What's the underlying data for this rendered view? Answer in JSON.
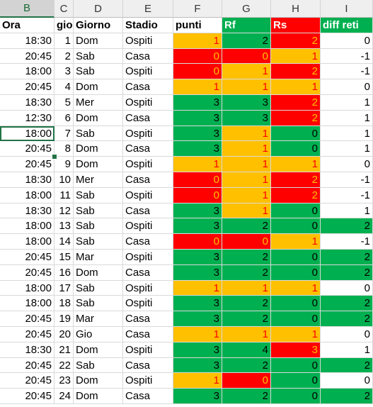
{
  "colors": {
    "red": "#ff0000",
    "green": "#00b050",
    "orange": "#ffc000",
    "white": "#ffffff"
  },
  "column_headers": [
    "B",
    "C",
    "D",
    "E",
    "F",
    "G",
    "H",
    "I"
  ],
  "selected_column": "B",
  "header_row": [
    "Ora",
    "gio",
    "Giorno",
    "Stadio",
    "punti",
    "Rf",
    "Rs",
    "diff reti"
  ],
  "header_fills": [
    "white",
    "white",
    "white",
    "white",
    "white",
    "green",
    "red",
    "green"
  ],
  "header_text_colors": [
    "#000000",
    "#000000",
    "#000000",
    "#000000",
    "#000000",
    "#ffffff",
    "#ffffff",
    "#ffffff"
  ],
  "active_cell": {
    "row": 7,
    "col": 0
  },
  "rows": [
    {
      "ora": "18:30",
      "gio": "1",
      "giorno": "Dom",
      "stadio": "Ospiti",
      "punti": "1",
      "punti_fill": "orange",
      "rf": "2",
      "rf_fill": "green",
      "rs": "2",
      "rs_fill": "red",
      "diff": "0",
      "diff_fill": "white"
    },
    {
      "ora": "20:45",
      "gio": "2",
      "giorno": "Sab",
      "stadio": "Casa",
      "punti": "0",
      "punti_fill": "red",
      "rf": "0",
      "rf_fill": "red",
      "rs": "1",
      "rs_fill": "orange",
      "diff": "-1",
      "diff_fill": "white"
    },
    {
      "ora": "18:00",
      "gio": "3",
      "giorno": "Sab",
      "stadio": "Ospiti",
      "punti": "0",
      "punti_fill": "red",
      "rf": "1",
      "rf_fill": "orange",
      "rs": "2",
      "rs_fill": "red",
      "diff": "-1",
      "diff_fill": "white"
    },
    {
      "ora": "20:45",
      "gio": "4",
      "giorno": "Dom",
      "stadio": "Casa",
      "punti": "1",
      "punti_fill": "orange",
      "rf": "1",
      "rf_fill": "orange",
      "rs": "1",
      "rs_fill": "orange",
      "diff": "0",
      "diff_fill": "white"
    },
    {
      "ora": "18:30",
      "gio": "5",
      "giorno": "Mer",
      "stadio": "Ospiti",
      "punti": "3",
      "punti_fill": "green",
      "rf": "3",
      "rf_fill": "green",
      "rs": "2",
      "rs_fill": "red",
      "diff": "1",
      "diff_fill": "white"
    },
    {
      "ora": "12:30",
      "gio": "6",
      "giorno": "Dom",
      "stadio": "Casa",
      "punti": "3",
      "punti_fill": "green",
      "rf": "3",
      "rf_fill": "green",
      "rs": "2",
      "rs_fill": "red",
      "diff": "1",
      "diff_fill": "white"
    },
    {
      "ora": "18:00",
      "gio": "7",
      "giorno": "Sab",
      "stadio": "Ospiti",
      "punti": "3",
      "punti_fill": "green",
      "rf": "1",
      "rf_fill": "orange",
      "rs": "0",
      "rs_fill": "green",
      "diff": "1",
      "diff_fill": "white"
    },
    {
      "ora": "20:45",
      "gio": "8",
      "giorno": "Dom",
      "stadio": "Casa",
      "punti": "3",
      "punti_fill": "green",
      "rf": "1",
      "rf_fill": "orange",
      "rs": "0",
      "rs_fill": "green",
      "diff": "1",
      "diff_fill": "white"
    },
    {
      "ora": "20:45",
      "gio": "9",
      "giorno": "Dom",
      "stadio": "Ospiti",
      "punti": "1",
      "punti_fill": "orange",
      "rf": "1",
      "rf_fill": "orange",
      "rs": "1",
      "rs_fill": "orange",
      "diff": "0",
      "diff_fill": "white"
    },
    {
      "ora": "18:30",
      "gio": "10",
      "giorno": "Mer",
      "stadio": "Casa",
      "punti": "0",
      "punti_fill": "red",
      "rf": "1",
      "rf_fill": "orange",
      "rs": "2",
      "rs_fill": "red",
      "diff": "-1",
      "diff_fill": "white"
    },
    {
      "ora": "18:00",
      "gio": "11",
      "giorno": "Sab",
      "stadio": "Ospiti",
      "punti": "0",
      "punti_fill": "red",
      "rf": "1",
      "rf_fill": "orange",
      "rs": "2",
      "rs_fill": "red",
      "diff": "-1",
      "diff_fill": "white"
    },
    {
      "ora": "18:30",
      "gio": "12",
      "giorno": "Sab",
      "stadio": "Casa",
      "punti": "3",
      "punti_fill": "green",
      "rf": "1",
      "rf_fill": "orange",
      "rs": "0",
      "rs_fill": "green",
      "diff": "1",
      "diff_fill": "white"
    },
    {
      "ora": "18:00",
      "gio": "13",
      "giorno": "Sab",
      "stadio": "Ospiti",
      "punti": "3",
      "punti_fill": "green",
      "rf": "2",
      "rf_fill": "green",
      "rs": "0",
      "rs_fill": "green",
      "diff": "2",
      "diff_fill": "green"
    },
    {
      "ora": "18:00",
      "gio": "14",
      "giorno": "Sab",
      "stadio": "Casa",
      "punti": "0",
      "punti_fill": "red",
      "rf": "0",
      "rf_fill": "red",
      "rs": "1",
      "rs_fill": "orange",
      "diff": "-1",
      "diff_fill": "white"
    },
    {
      "ora": "20:45",
      "gio": "15",
      "giorno": "Mar",
      "stadio": "Ospiti",
      "punti": "3",
      "punti_fill": "green",
      "rf": "2",
      "rf_fill": "green",
      "rs": "0",
      "rs_fill": "green",
      "diff": "2",
      "diff_fill": "green"
    },
    {
      "ora": "20:45",
      "gio": "16",
      "giorno": "Dom",
      "stadio": "Casa",
      "punti": "3",
      "punti_fill": "green",
      "rf": "2",
      "rf_fill": "green",
      "rs": "0",
      "rs_fill": "green",
      "diff": "2",
      "diff_fill": "green"
    },
    {
      "ora": "18:00",
      "gio": "17",
      "giorno": "Sab",
      "stadio": "Ospiti",
      "punti": "1",
      "punti_fill": "orange",
      "rf": "1",
      "rf_fill": "orange",
      "rs": "1",
      "rs_fill": "orange",
      "diff": "0",
      "diff_fill": "white"
    },
    {
      "ora": "18:00",
      "gio": "18",
      "giorno": "Sab",
      "stadio": "Ospiti",
      "punti": "3",
      "punti_fill": "green",
      "rf": "2",
      "rf_fill": "green",
      "rs": "0",
      "rs_fill": "green",
      "diff": "2",
      "diff_fill": "green"
    },
    {
      "ora": "20:45",
      "gio": "19",
      "giorno": "Mar",
      "stadio": "Casa",
      "punti": "3",
      "punti_fill": "green",
      "rf": "2",
      "rf_fill": "green",
      "rs": "0",
      "rs_fill": "green",
      "diff": "2",
      "diff_fill": "green"
    },
    {
      "ora": "20:45",
      "gio": "20",
      "giorno": "Gio",
      "stadio": "Casa",
      "punti": "1",
      "punti_fill": "orange",
      "rf": "1",
      "rf_fill": "orange",
      "rs": "1",
      "rs_fill": "orange",
      "diff": "0",
      "diff_fill": "white"
    },
    {
      "ora": "18:30",
      "gio": "21",
      "giorno": "Dom",
      "stadio": "Ospiti",
      "punti": "3",
      "punti_fill": "green",
      "rf": "4",
      "rf_fill": "green",
      "rs": "3",
      "rs_fill": "red",
      "diff": "1",
      "diff_fill": "white"
    },
    {
      "ora": "20:45",
      "gio": "22",
      "giorno": "Sab",
      "stadio": "Casa",
      "punti": "3",
      "punti_fill": "green",
      "rf": "2",
      "rf_fill": "green",
      "rs": "0",
      "rs_fill": "green",
      "diff": "2",
      "diff_fill": "green"
    },
    {
      "ora": "20:45",
      "gio": "23",
      "giorno": "Dom",
      "stadio": "Ospiti",
      "punti": "1",
      "punti_fill": "orange",
      "rf": "0",
      "rf_fill": "red",
      "rs": "0",
      "rs_fill": "green",
      "diff": "0",
      "diff_fill": "white"
    },
    {
      "ora": "20:45",
      "gio": "24",
      "giorno": "Dom",
      "stadio": "Casa",
      "punti": "3",
      "punti_fill": "green",
      "rf": "2",
      "rf_fill": "green",
      "rs": "0",
      "rs_fill": "green",
      "diff": "2",
      "diff_fill": "green"
    }
  ]
}
